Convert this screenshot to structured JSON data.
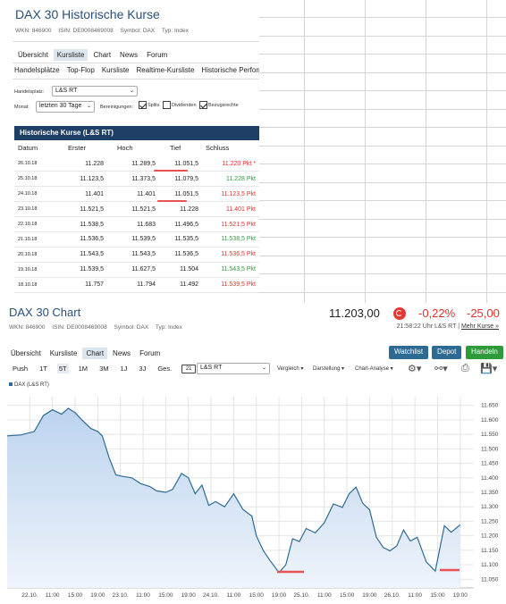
{
  "historical": {
    "title": "DAX 30 Historische Kurse",
    "wkn": "WKN: 846900",
    "isin": "ISIN: DE0008469008",
    "symbol": "Symbol: DAX",
    "typ": "Typ: Index",
    "tabs": [
      "Übersicht",
      "Kursliste",
      "Chart",
      "News",
      "Forum"
    ],
    "active_tab": "Kursliste",
    "subtabs": [
      "Handelsplätze",
      "Top-Flop",
      "Kursliste",
      "Realtime-Kursliste",
      "Historische Performa"
    ],
    "handelsplatz_label": "Handelsplatz:",
    "handelsplatz_value": "L&S RT",
    "monat_label": "Monat:",
    "monat_value": "letzten 30 Tage",
    "bereinigungen_label": "Bereinigungen:",
    "check_splits": "Splits",
    "check_dividenden": "Dividenden",
    "check_bezugsrechte": "Bezugsrechte",
    "checks_state": {
      "splits": true,
      "dividenden": false,
      "bezugsrechte": true
    },
    "section_title": "Historische Kurse (L&S RT)",
    "columns": [
      "Datum",
      "Erster",
      "Hoch",
      "Tief",
      "Schluss"
    ],
    "rows": [
      {
        "datum": "26.10.18",
        "erster": "11.228",
        "hoch": "11.289,5",
        "tief": "11.051,5",
        "schluss": "11.220 Pkt *",
        "dir": "down"
      },
      {
        "datum": "25.10.18",
        "erster": "11.123,5",
        "hoch": "11.373,5",
        "tief": "11.079,5",
        "schluss": "11.228 Pkt",
        "dir": "up"
      },
      {
        "datum": "24.10.18",
        "erster": "11.401",
        "hoch": "11.401",
        "tief": "11.051,5",
        "schluss": "11.123,5 Pkt",
        "dir": "down"
      },
      {
        "datum": "23.10.18",
        "erster": "11.521,5",
        "hoch": "11.521,5",
        "tief": "11.228",
        "schluss": "11.401 Pkt",
        "dir": "down"
      },
      {
        "datum": "22.10.18",
        "erster": "11.538,5",
        "hoch": "11.683",
        "tief": "11.496,5",
        "schluss": "11.521,5 Pkt",
        "dir": "down"
      },
      {
        "datum": "21.10.18",
        "erster": "11.536,5",
        "hoch": "11.539,5",
        "tief": "11.535,5",
        "schluss": "11.538,5 Pkt",
        "dir": "up"
      },
      {
        "datum": "20.10.18",
        "erster": "11.543,5",
        "hoch": "11.543,5",
        "tief": "11.536,5",
        "schluss": "11.536,5 Pkt",
        "dir": "down"
      },
      {
        "datum": "19.10.18",
        "erster": "11.539,5",
        "hoch": "11.627,5",
        "tief": "11.504",
        "schluss": "11.543,5 Pkt",
        "dir": "up"
      },
      {
        "datum": "18.10.18",
        "erster": "11.757",
        "hoch": "11.794",
        "tief": "11.492",
        "schluss": "11.539,5 Pkt",
        "dir": "down"
      }
    ],
    "colors": {
      "header_bg": "#1f3f66",
      "up": "#2a9a3a",
      "down": "#e0312e",
      "marker": "#e8534f"
    }
  },
  "chart_section": {
    "title": "DAX 30 Chart",
    "price": "11.203,00",
    "change_pct": "-0,22%",
    "change_abs": "-25,00",
    "wkn": "WKN: 846900",
    "isin": "ISIN: DE0008469008",
    "symbol": "Symbol: DAX",
    "typ": "Typ: Index",
    "time": "21:58:22 Uhr L&S RT",
    "mehr_kurse": "Mehr Kurse »",
    "tabs": [
      "Übersicht",
      "Kursliste",
      "Chart",
      "News",
      "Forum"
    ],
    "active_tab": "Chart",
    "buttons": {
      "watchlist": "Watchlist",
      "depot": "Depot",
      "handeln": "Handeln"
    },
    "periods": [
      "Push",
      "1T",
      "5T",
      "1M",
      "3M",
      "1J",
      "3J",
      "Ges."
    ],
    "active_period": "5T",
    "calendar": "21",
    "exchange": "L&S RT",
    "dropdowns": [
      "Vergleich",
      "Darstellung",
      "Chart-Analyse"
    ],
    "legend": "DAX (L&S RT)"
  },
  "chart_data": {
    "type": "area",
    "title": "",
    "series": [
      {
        "name": "DAX (L&S RT)",
        "color": "#2e6b94"
      }
    ],
    "x_ticks": [
      "22.10.",
      "11:00",
      "15:00",
      "19:00",
      "23.10.",
      "11:00",
      "15:00",
      "19:00",
      "24.10.",
      "11:00",
      "15:00",
      "19:00",
      "25.10.",
      "11:00",
      "15:00",
      "19:00",
      "26.10.",
      "11:00",
      "15:00",
      "19:00"
    ],
    "y_ticks": [
      "11.050",
      "11.100",
      "11.150",
      "11.200",
      "11.250",
      "11.300",
      "11.350",
      "11.400",
      "11.450",
      "11.500",
      "11.550",
      "11.600",
      "11.650"
    ],
    "ylim": [
      11020,
      11680
    ],
    "x": [
      0,
      0.6,
      1.2,
      1.6,
      2,
      2.4,
      2.7,
      3,
      3.3,
      3.7,
      4,
      4.2,
      4.5,
      4.8,
      5.1,
      5.5,
      5.9,
      6.3,
      6.6,
      7,
      7.3,
      7.7,
      8,
      8.3,
      8.6,
      8.9,
      9.2,
      9.6,
      10,
      10.4,
      10.8,
      11,
      11.3,
      11.6,
      12,
      12.3,
      12.6,
      12.9,
      13.2,
      13.6,
      14,
      14.4,
      14.8,
      15.1,
      15.4,
      15.7,
      16,
      16.3,
      16.6,
      16.9,
      17.2,
      17.5,
      17.8,
      18.1,
      18.5,
      18.9,
      19.3,
      19.6,
      20
    ],
    "values": [
      11545,
      11548,
      11560,
      11615,
      11635,
      11620,
      11640,
      11625,
      11600,
      11570,
      11560,
      11545,
      11470,
      11410,
      11405,
      11400,
      11380,
      11370,
      11355,
      11350,
      11360,
      11415,
      11400,
      11345,
      11375,
      11305,
      11318,
      11300,
      11345,
      11292,
      11268,
      11200,
      11150,
      11115,
      11073,
      11100,
      11190,
      11180,
      11225,
      11210,
      11245,
      11310,
      11298,
      11345,
      11368,
      11312,
      11290,
      11195,
      11160,
      11148,
      11165,
      11220,
      11182,
      11195,
      11110,
      11078,
      11235,
      11212,
      11238
    ],
    "grid": true
  }
}
